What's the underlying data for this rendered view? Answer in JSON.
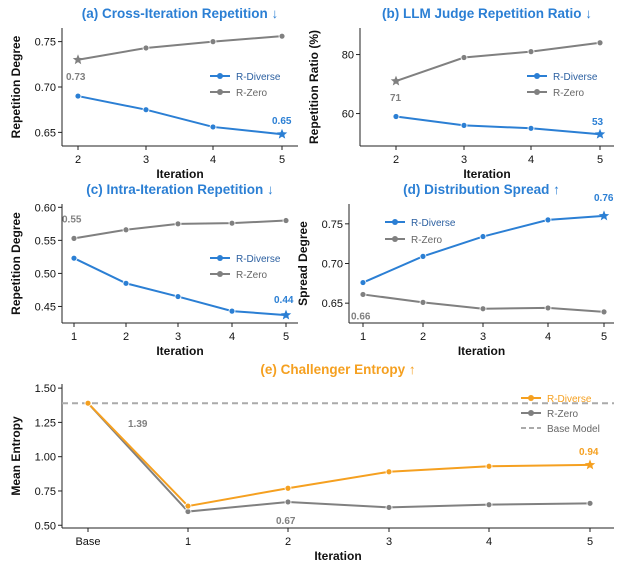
{
  "chart_data": [
    {
      "type": "line",
      "title": "(a) Cross-Iteration Repetition ↓",
      "xlabel": "Iteration",
      "ylabel": "Repetition Degree",
      "categories": [
        "2",
        "3",
        "4",
        "5"
      ],
      "ylim": [
        0.635,
        0.765
      ],
      "yticks": [
        "0.65",
        "0.70",
        "0.75"
      ],
      "ytick_values": [
        0.65,
        0.7,
        0.75
      ],
      "series": [
        {
          "name": "R-Diverse",
          "values": [
            0.69,
            0.675,
            0.656,
            0.648
          ],
          "color": "#2b7fd4"
        },
        {
          "name": "R-Zero",
          "values": [
            0.73,
            0.743,
            0.75,
            0.756
          ],
          "color": "#808080"
        }
      ],
      "annotations": [
        {
          "text": "0.73",
          "series": "R-Zero",
          "index": 0
        },
        {
          "text": "0.65",
          "series": "R-Diverse",
          "index": 3
        }
      ],
      "legend": "center-right"
    },
    {
      "type": "line",
      "title": "(b) LLM Judge Repetition Ratio ↓",
      "xlabel": "Iteration",
      "ylabel": "Repetition Ratio (%)",
      "categories": [
        "2",
        "3",
        "4",
        "5"
      ],
      "ylim": [
        49,
        89
      ],
      "yticks": [
        "60",
        "80"
      ],
      "ytick_values": [
        60,
        80
      ],
      "series": [
        {
          "name": "R-Diverse",
          "values": [
            59,
            56,
            55,
            53
          ],
          "color": "#2b7fd4"
        },
        {
          "name": "R-Zero",
          "values": [
            71,
            79,
            81,
            84
          ],
          "color": "#808080"
        }
      ],
      "annotations": [
        {
          "text": "71",
          "series": "R-Zero",
          "index": 0
        },
        {
          "text": "53",
          "series": "R-Diverse",
          "index": 3
        }
      ],
      "legend": "center-right"
    },
    {
      "type": "line",
      "title": "(c) Intra-Iteration Repetition ↓",
      "xlabel": "Iteration",
      "ylabel": "Repetition Degree",
      "categories": [
        "1",
        "2",
        "3",
        "4",
        "5"
      ],
      "ylim": [
        0.425,
        0.605
      ],
      "yticks": [
        "0.45",
        "0.50",
        "0.55",
        "0.60"
      ],
      "ytick_values": [
        0.45,
        0.5,
        0.55,
        0.6
      ],
      "series": [
        {
          "name": "R-Diverse",
          "values": [
            0.523,
            0.485,
            0.465,
            0.443,
            0.437
          ],
          "color": "#2b7fd4"
        },
        {
          "name": "R-Zero",
          "values": [
            0.553,
            0.566,
            0.575,
            0.576,
            0.58
          ],
          "color": "#808080"
        }
      ],
      "annotations": [
        {
          "text": "0.55",
          "series": "R-Zero",
          "index": 0
        },
        {
          "text": "0.44",
          "series": "R-Diverse",
          "index": 4
        }
      ],
      "legend": "center-right"
    },
    {
      "type": "line",
      "title": "(d) Distribution Spread ↑",
      "xlabel": "Iteration",
      "ylabel": "Spread Degree",
      "categories": [
        "1",
        "2",
        "3",
        "4",
        "5"
      ],
      "ylim": [
        0.625,
        0.775
      ],
      "yticks": [
        "0.65",
        "0.70",
        "0.75"
      ],
      "ytick_values": [
        0.65,
        0.7,
        0.75
      ],
      "series": [
        {
          "name": "R-Diverse",
          "values": [
            0.676,
            0.709,
            0.734,
            0.755,
            0.76
          ],
          "color": "#2b7fd4"
        },
        {
          "name": "R-Zero",
          "values": [
            0.661,
            0.651,
            0.643,
            0.644,
            0.639
          ],
          "color": "#808080"
        }
      ],
      "annotations": [
        {
          "text": "0.66",
          "series": "R-Zero",
          "index": 0
        },
        {
          "text": "0.76",
          "series": "R-Diverse",
          "index": 4
        }
      ],
      "legend": "top-left"
    },
    {
      "type": "line",
      "title": "(e) Challenger Entropy ↑",
      "xlabel": "Iteration",
      "ylabel": "Mean Entropy",
      "categories": [
        "Base",
        "1",
        "2",
        "3",
        "4",
        "5"
      ],
      "ylim": [
        0.48,
        1.53
      ],
      "yticks": [
        "0.50",
        "0.75",
        "1.00",
        "1.25",
        "1.50"
      ],
      "ytick_values": [
        0.5,
        0.75,
        1.0,
        1.25,
        1.5
      ],
      "series": [
        {
          "name": "R-Diverse",
          "values": [
            1.39,
            0.64,
            0.77,
            0.89,
            0.93,
            0.94
          ],
          "color": "#f5a020"
        },
        {
          "name": "R-Zero",
          "values": [
            1.39,
            0.6,
            0.67,
            0.63,
            0.65,
            0.66
          ],
          "color": "#808080"
        }
      ],
      "reference_line": {
        "name": "Base Model",
        "value": 1.39,
        "color": "#aaaaaa"
      },
      "annotations": [
        {
          "text": "1.39",
          "series": "R-Zero",
          "index": 0
        },
        {
          "text": "0.67",
          "series": "R-Zero",
          "index": 2
        },
        {
          "text": "0.94",
          "series": "R-Diverse",
          "index": 5
        }
      ],
      "legend": "top-right"
    }
  ]
}
